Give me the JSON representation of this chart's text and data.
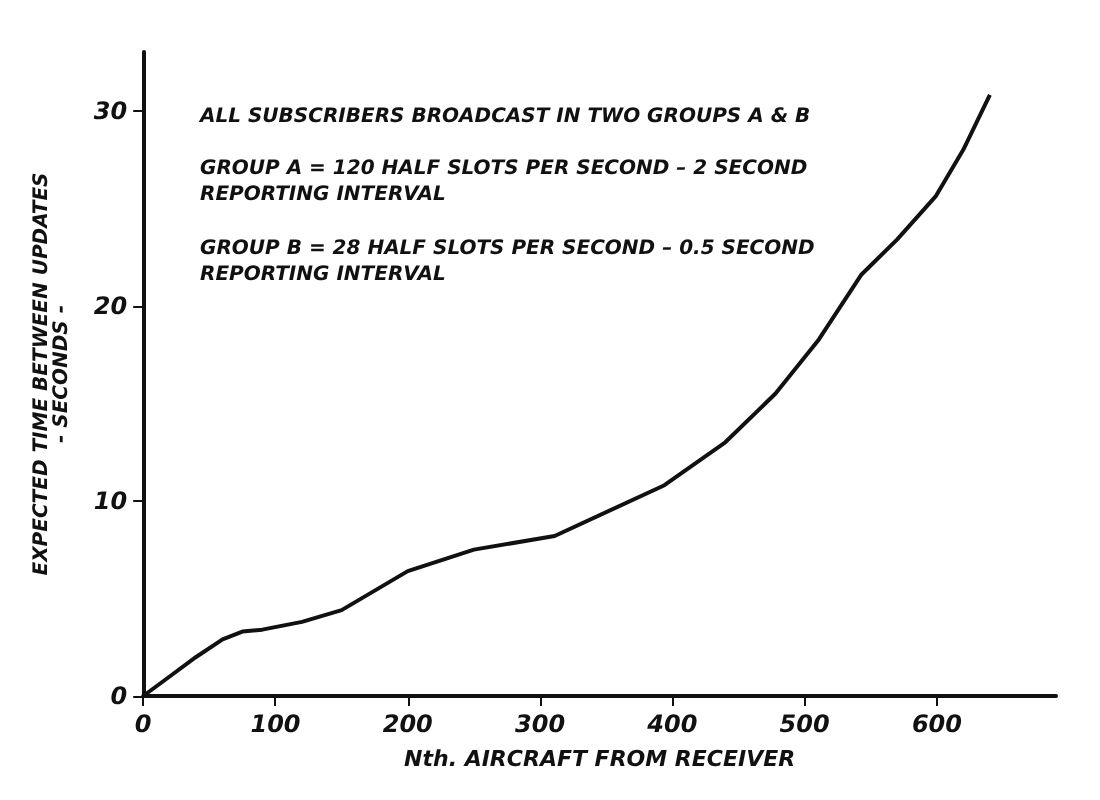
{
  "chart_data": {
    "type": "line",
    "xlabel": "Nth. AIRCRAFT FROM RECEIVER",
    "ylabel": "EXPECTED TIME BETWEEN UPDATES\n- SECONDS -",
    "annotations": [
      "ALL SUBSCRIBERS BROADCAST IN TWO GROUPS A & B",
      "GROUP A = 120 HALF SLOTS PER SECOND – 2 SECOND\nREPORTING INTERVAL",
      "GROUP B = 28 HALF SLOTS PER SECOND – 0.5 SECOND\nREPORTING INTERVAL"
    ],
    "x": [
      0,
      20,
      40,
      60,
      75,
      90,
      120,
      150,
      200,
      250,
      311,
      394,
      440,
      478,
      510,
      543,
      570,
      599,
      620,
      640
    ],
    "series": [
      {
        "color": "#111111",
        "values": [
          0,
          1.0,
          2.0,
          2.9,
          3.3,
          3.4,
          3.8,
          4.4,
          6.4,
          7.5,
          8.2,
          10.8,
          13.0,
          15.5,
          18.2,
          21.6,
          23.4,
          25.6,
          28.0,
          30.8
        ]
      }
    ],
    "xlim": [
      0,
      690
    ],
    "ylim": [
      0,
      33
    ],
    "xticks": [
      0,
      100,
      200,
      300,
      400,
      500,
      600
    ],
    "yticks": [
      0,
      10,
      20,
      30
    ],
    "grid": false,
    "marker": "none",
    "line_style": "solid"
  }
}
